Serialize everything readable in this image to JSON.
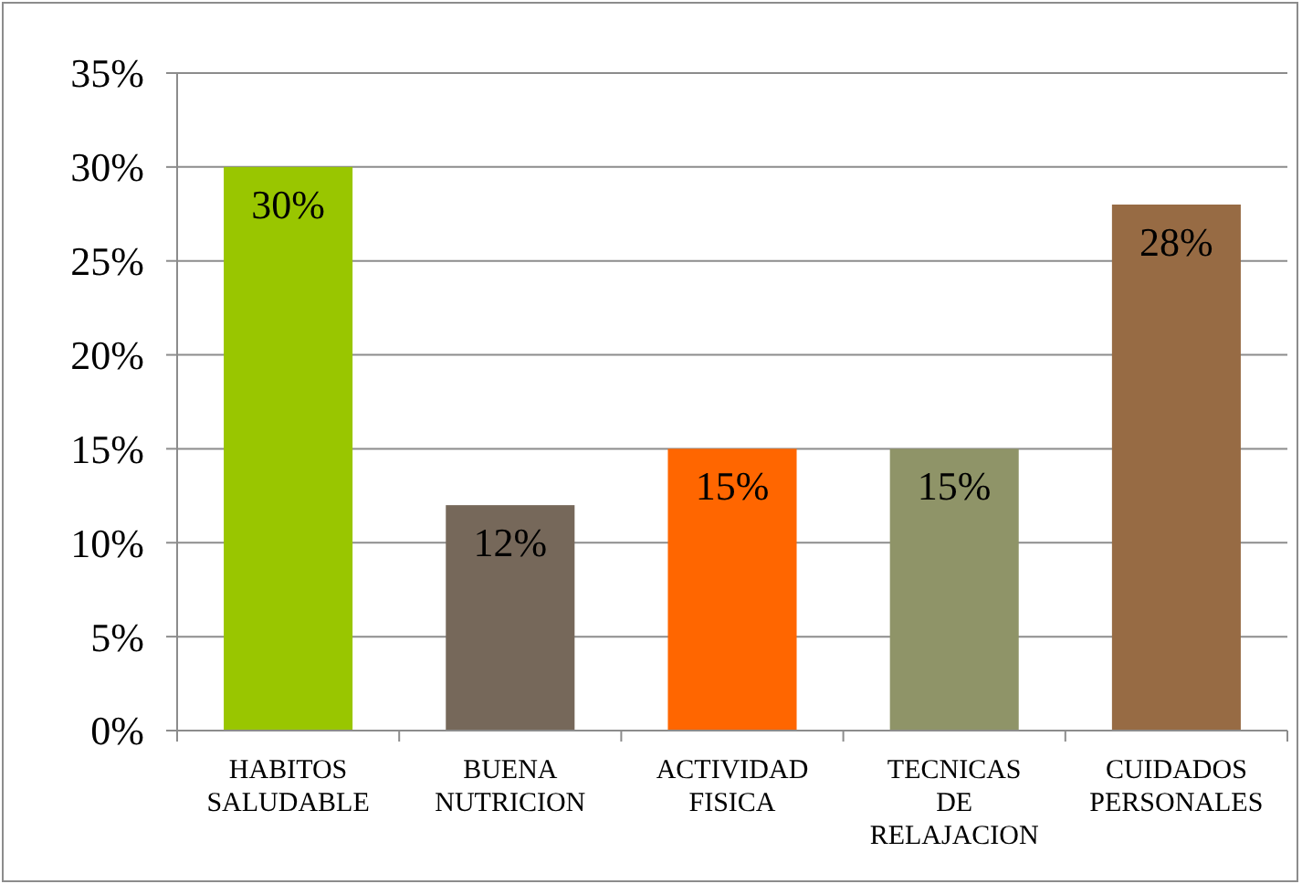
{
  "chart_data": {
    "type": "bar",
    "categories": [
      "HABITOS SALUDABLE",
      "BUENA NUTRICION",
      "ACTIVIDAD FISICA",
      "TECNICAS DE RELAJACION",
      "CUIDADOS PERSONALES"
    ],
    "values": [
      30,
      12,
      15,
      15,
      28
    ],
    "colors": [
      "#99c600",
      "#76685a",
      "#ff6600",
      "#8f9468",
      "#976b44"
    ],
    "value_labels": [
      "30%",
      "12%",
      "15%",
      "15%",
      "28%"
    ],
    "ylim": [
      0,
      35
    ],
    "yticks": [
      {
        "value": 0,
        "label": "0%"
      },
      {
        "value": 5,
        "label": "5%"
      },
      {
        "value": 10,
        "label": "10%"
      },
      {
        "value": 15,
        "label": "15%"
      },
      {
        "value": 20,
        "label": "20%"
      },
      {
        "value": 25,
        "label": "25%"
      },
      {
        "value": 30,
        "label": "30%"
      },
      {
        "value": 35,
        "label": "35%"
      }
    ],
    "grid": "y"
  }
}
